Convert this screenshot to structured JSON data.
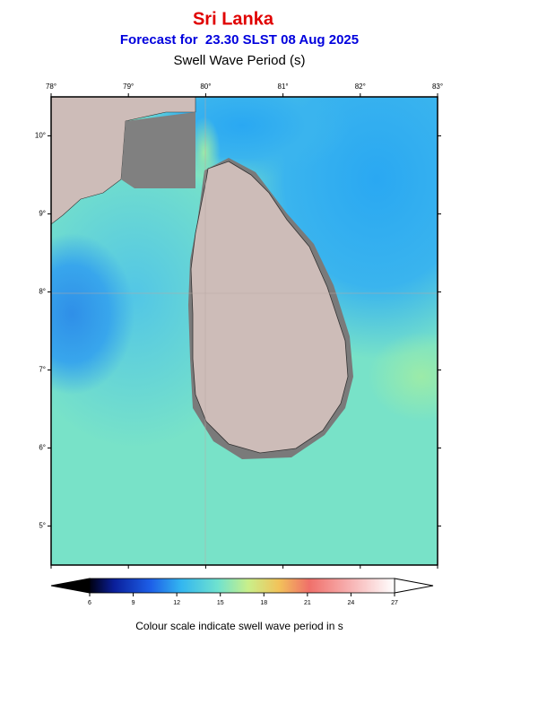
{
  "header": {
    "title": "Sri Lanka",
    "subtitle": "Forecast for  23.30 SLST 08 Aug 2025",
    "variable": "Swell Wave Period (s)"
  },
  "map": {
    "lonlim": [
      78,
      83
    ],
    "latlim": [
      4.5,
      10.5
    ],
    "lon_ticks": [
      {
        "value": 78,
        "label": "78°"
      },
      {
        "value": 79,
        "label": "79°"
      },
      {
        "value": 80,
        "label": "80°"
      },
      {
        "value": 81,
        "label": "81°"
      },
      {
        "value": 82,
        "label": "82°"
      },
      {
        "value": 83,
        "label": "83°"
      }
    ],
    "lat_ticks": [
      {
        "value": 10,
        "label": "10°"
      },
      {
        "value": 9,
        "label": "9°"
      },
      {
        "value": 8,
        "label": "8°"
      },
      {
        "value": 7,
        "label": "7°"
      },
      {
        "value": 6,
        "label": "6°"
      },
      {
        "value": 5,
        "label": "5°"
      }
    ]
  },
  "colorbar": {
    "lim": [
      6,
      27
    ],
    "ticks": [
      6,
      9,
      12,
      15,
      18,
      21,
      24,
      27
    ],
    "caption": "Colour scale indicate swell wave period in s"
  }
}
